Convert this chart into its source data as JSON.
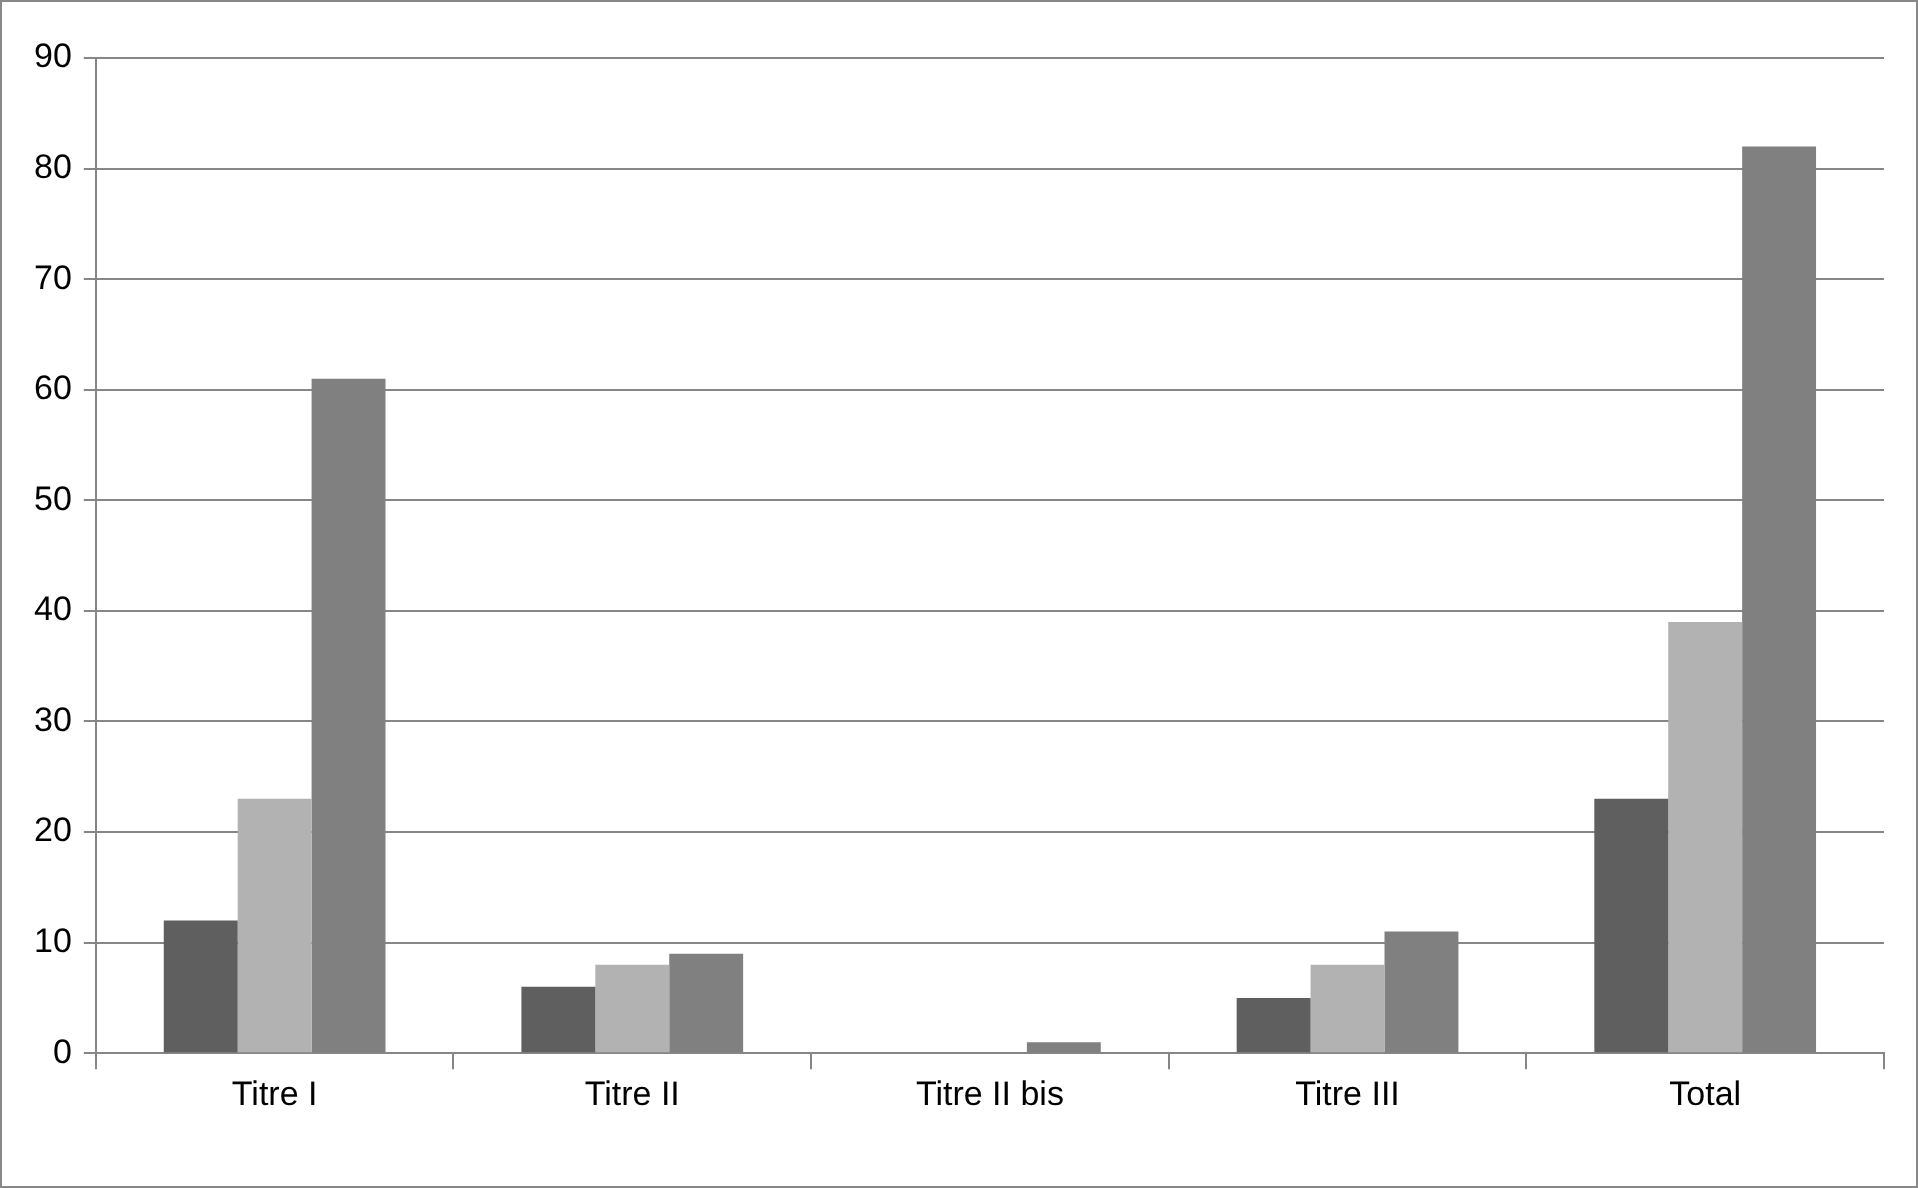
{
  "chart_data": {
    "type": "bar",
    "categories": [
      "Titre I",
      "Titre II",
      "Titre II bis",
      "Titre III",
      "Total"
    ],
    "series": [
      {
        "color": "#5f5f5f",
        "values": [
          12,
          6,
          0,
          5,
          23
        ]
      },
      {
        "color": "#b2b2b2",
        "values": [
          23,
          8,
          0,
          8,
          39
        ]
      },
      {
        "color": "#808080",
        "values": [
          61,
          9,
          1,
          11,
          82
        ]
      }
    ],
    "ylim": [
      0,
      90
    ],
    "yticks": [
      0,
      10,
      20,
      30,
      40,
      50,
      60,
      70,
      80,
      90
    ],
    "grid": "y",
    "legend": false
  }
}
